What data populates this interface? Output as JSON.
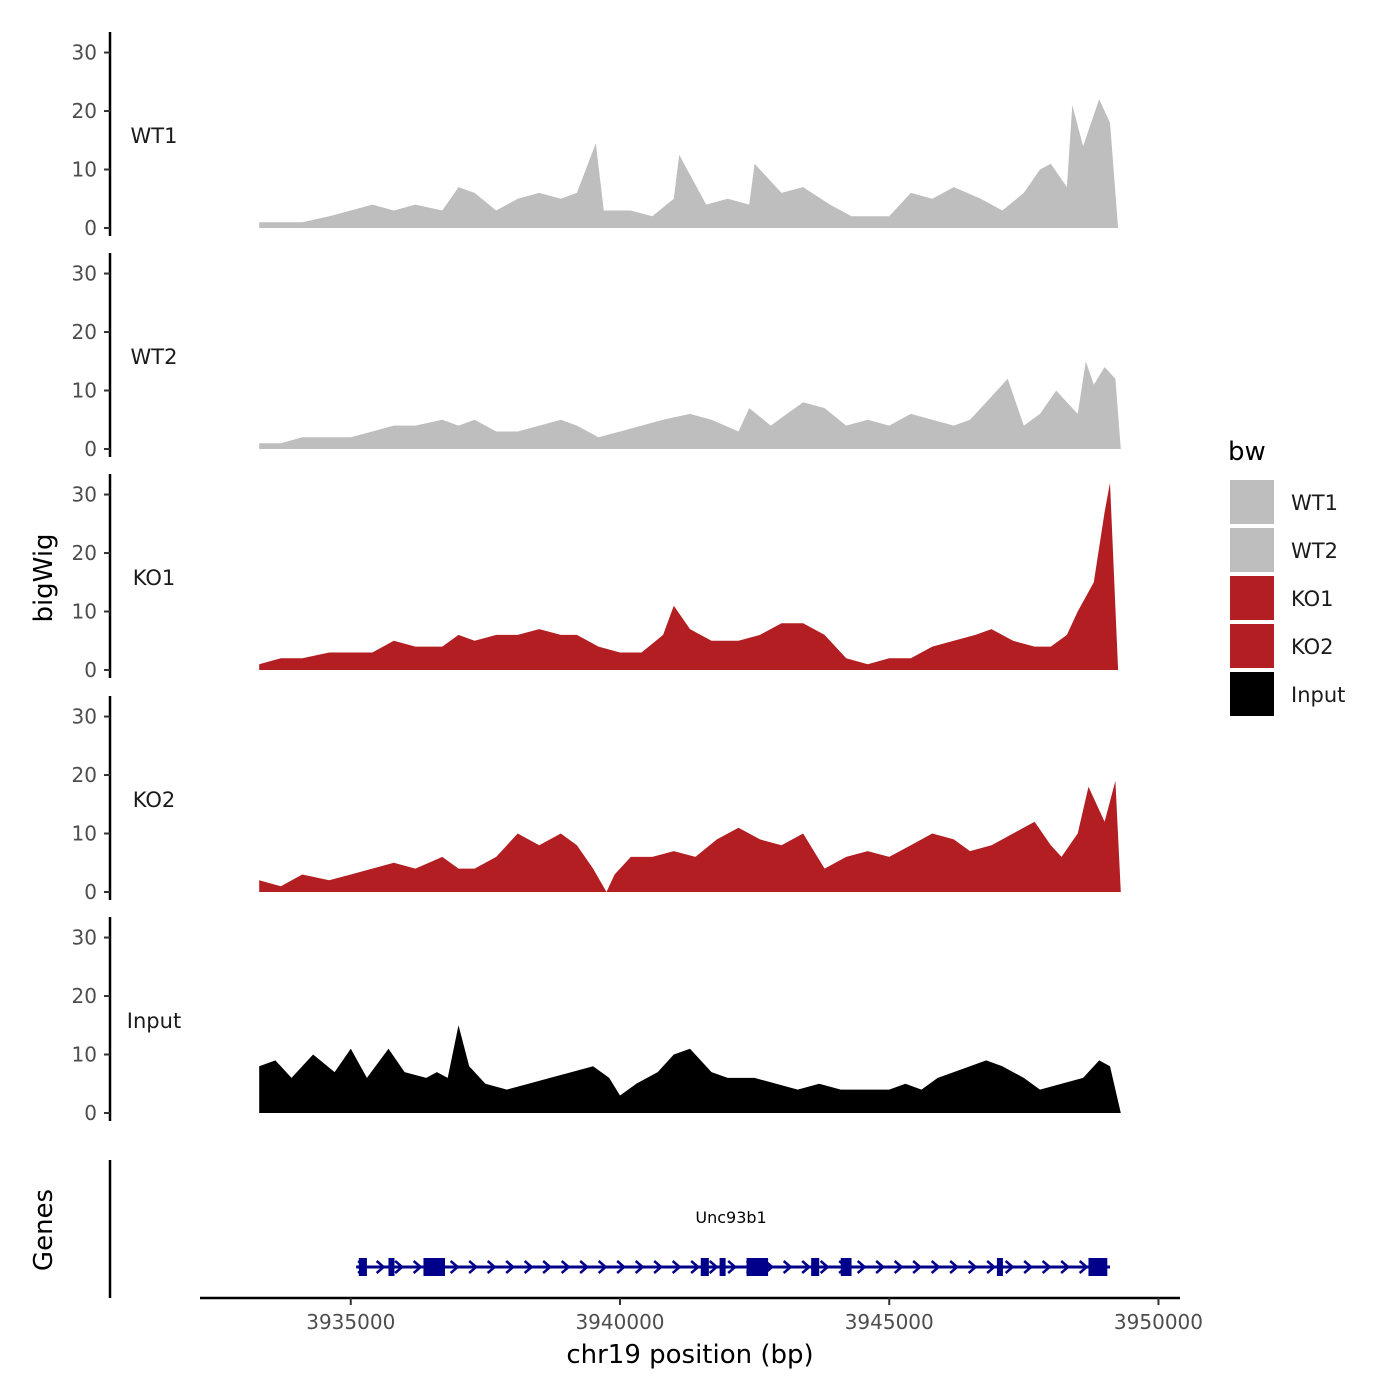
{
  "chart_data": {
    "type": "area",
    "title": "",
    "xlabel": "chr19 position (bp)",
    "ylabel": "bigWig",
    "genes_label": "Genes",
    "xlim": [
      3932200,
      3950400
    ],
    "ylim": [
      0,
      33
    ],
    "x_ticks": [
      3935000,
      3940000,
      3945000,
      3950000
    ],
    "x_tick_labels": [
      "3935000",
      "3940000",
      "3945000",
      "3950000"
    ],
    "y_ticks": [
      0,
      10,
      20,
      30
    ],
    "y_tick_labels": [
      "0",
      "10",
      "20",
      "30"
    ],
    "legend": {
      "title": "bw",
      "placement": "right",
      "entries": [
        {
          "label": "WT1",
          "color": "#bebebe"
        },
        {
          "label": "WT2",
          "color": "#bebebe"
        },
        {
          "label": "KO1",
          "color": "#b21e21"
        },
        {
          "label": "KO2",
          "color": "#b21e21"
        },
        {
          "label": "Input",
          "color": "#000000"
        }
      ]
    },
    "series": [
      {
        "name": "WT1",
        "color": "#bebebe",
        "x": [
          3933300,
          3933700,
          3934100,
          3934600,
          3935000,
          3935400,
          3935800,
          3936200,
          3936700,
          3937000,
          3937300,
          3937700,
          3938100,
          3938500,
          3938900,
          3939200,
          3939550,
          3939700,
          3940200,
          3940600,
          3941000,
          3941100,
          3941600,
          3942000,
          3942400,
          3942500,
          3943000,
          3943400,
          3943900,
          3944300,
          3944700,
          3945000,
          3945400,
          3945800,
          3946200,
          3946700,
          3947100,
          3947500,
          3947800,
          3948000,
          3948300,
          3948400,
          3948600,
          3948900,
          3949100,
          3949250
        ],
        "values": [
          1,
          1,
          1,
          2,
          3,
          4,
          3,
          4,
          3,
          7,
          6,
          3,
          5,
          6,
          5,
          6,
          14.5,
          3,
          3,
          2,
          5,
          12.5,
          4,
          5,
          4,
          11,
          6,
          7,
          4,
          2,
          2,
          2,
          6,
          5,
          7,
          5,
          3,
          6,
          10,
          11,
          7,
          21,
          14,
          22,
          18,
          0
        ]
      },
      {
        "name": "WT2",
        "color": "#bebebe",
        "x": [
          3933300,
          3933700,
          3934100,
          3934600,
          3935000,
          3935400,
          3935800,
          3936200,
          3936700,
          3937000,
          3937300,
          3937700,
          3938100,
          3938500,
          3938900,
          3939200,
          3939600,
          3940000,
          3940400,
          3940800,
          3941300,
          3941700,
          3942200,
          3942400,
          3942800,
          3943100,
          3943400,
          3943800,
          3944200,
          3944600,
          3945000,
          3945400,
          3945800,
          3946200,
          3946500,
          3946700,
          3947200,
          3947500,
          3947800,
          3948100,
          3948300,
          3948500,
          3948650,
          3948800,
          3949000,
          3949200,
          3949300
        ],
        "values": [
          1,
          1,
          2,
          2,
          2,
          3,
          4,
          4,
          5,
          4,
          5,
          3,
          3,
          4,
          5,
          4,
          2,
          3,
          4,
          5,
          6,
          5,
          3,
          7,
          4,
          6,
          8,
          7,
          4,
          5,
          4,
          6,
          5,
          4,
          5,
          7,
          12,
          4,
          6,
          10,
          8,
          6,
          15,
          11,
          14,
          12,
          0
        ]
      },
      {
        "name": "KO1",
        "color": "#b21e21",
        "x": [
          3933300,
          3933700,
          3934100,
          3934600,
          3935000,
          3935400,
          3935800,
          3936200,
          3936700,
          3937000,
          3937300,
          3937700,
          3938100,
          3938500,
          3938900,
          3939200,
          3939600,
          3940000,
          3940400,
          3940800,
          3941000,
          3941300,
          3941700,
          3942200,
          3942600,
          3943000,
          3943400,
          3943800,
          3944200,
          3944600,
          3945000,
          3945400,
          3945800,
          3946200,
          3946600,
          3946900,
          3947300,
          3947700,
          3948000,
          3948300,
          3948500,
          3948800,
          3949000,
          3949100,
          3949250
        ],
        "values": [
          1,
          2,
          2,
          3,
          3,
          3,
          5,
          4,
          4,
          6,
          5,
          6,
          6,
          7,
          6,
          6,
          4,
          3,
          3,
          6,
          11,
          7,
          5,
          5,
          6,
          8,
          8,
          6,
          2,
          1,
          2,
          2,
          4,
          5,
          6,
          7,
          5,
          4,
          4,
          6,
          10,
          15,
          27,
          32,
          0
        ]
      },
      {
        "name": "KO2",
        "color": "#b21e21",
        "x": [
          3933300,
          3933700,
          3934100,
          3934600,
          3935000,
          3935400,
          3935800,
          3936200,
          3936700,
          3937000,
          3937300,
          3937700,
          3938100,
          3938500,
          3938900,
          3939200,
          3939500,
          3939750,
          3939900,
          3940200,
          3940600,
          3941000,
          3941400,
          3941800,
          3942200,
          3942600,
          3943000,
          3943400,
          3943800,
          3944200,
          3944600,
          3945000,
          3945400,
          3945800,
          3946200,
          3946500,
          3946900,
          3947300,
          3947700,
          3948000,
          3948200,
          3948500,
          3948700,
          3949000,
          3949200,
          3949300
        ],
        "values": [
          2,
          1,
          3,
          2,
          3,
          4,
          5,
          4,
          6,
          4,
          4,
          6,
          10,
          8,
          10,
          8,
          4,
          0,
          3,
          6,
          6,
          7,
          6,
          9,
          11,
          9,
          8,
          10,
          4,
          6,
          7,
          6,
          8,
          10,
          9,
          7,
          8,
          10,
          12,
          8,
          6,
          10,
          18,
          12,
          19,
          0
        ]
      },
      {
        "name": "Input",
        "color": "#000000",
        "x": [
          3933300,
          3933600,
          3933900,
          3934300,
          3934700,
          3935000,
          3935300,
          3935700,
          3936000,
          3936400,
          3936600,
          3936800,
          3937000,
          3937200,
          3937500,
          3937900,
          3938300,
          3938700,
          3939100,
          3939500,
          3939800,
          3940000,
          3940300,
          3940700,
          3941000,
          3941300,
          3941700,
          3942000,
          3942500,
          3942900,
          3943300,
          3943700,
          3944100,
          3944600,
          3945000,
          3945300,
          3945600,
          3945900,
          3946200,
          3946500,
          3946800,
          3947100,
          3947500,
          3947800,
          3948200,
          3948600,
          3948900,
          3949100,
          3949300
        ],
        "values": [
          8,
          9,
          6,
          10,
          7,
          11,
          6,
          11,
          7,
          6,
          7,
          6,
          15,
          8,
          5,
          4,
          5,
          6,
          7,
          8,
          6,
          3,
          5,
          7,
          10,
          11,
          7,
          6,
          6,
          5,
          4,
          5,
          4,
          4,
          4,
          5,
          4,
          6,
          7,
          8,
          9,
          8,
          6,
          4,
          5,
          6,
          9,
          8,
          0
        ]
      }
    ],
    "genes": [
      {
        "name": "Unc93b1",
        "strand": "+",
        "start": 3935100,
        "end": 3949100,
        "exons": [
          [
            3935150,
            3935300
          ],
          [
            3935700,
            3935800
          ],
          [
            3936350,
            3936750
          ],
          [
            3941500,
            3941650
          ],
          [
            3941850,
            3941950
          ],
          [
            3942350,
            3942750
          ],
          [
            3943550,
            3943700
          ],
          [
            3944100,
            3944300
          ],
          [
            3947000,
            3947100
          ],
          [
            3948700,
            3949050
          ]
        ]
      }
    ]
  }
}
